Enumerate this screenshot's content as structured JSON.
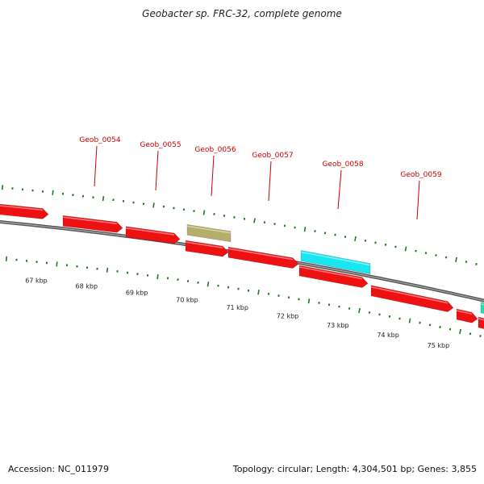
{
  "title": "Geobacter sp. FRC-32, complete genome",
  "footer": {
    "accession": "Accession: NC_011979",
    "stats": "Topology: circular; Length: 4,304,501 bp; Genes: 3,855"
  },
  "colors": {
    "gene_default": "#ee1111",
    "gene_khaki": "#b5ad6a",
    "gene_cyan": "#19e6f0",
    "gene_teal": "#1ee0b0",
    "label": "#cc0000",
    "tick": "#1d7a1d",
    "backbone": "#777777"
  },
  "gene_labels": [
    {
      "text": "Geob_0054"
    },
    {
      "text": "Geob_0055"
    },
    {
      "text": "Geob_0056"
    },
    {
      "text": "Geob_0057"
    },
    {
      "text": "Geob_0058"
    },
    {
      "text": "Geob_0059"
    }
  ],
  "kbp_labels": [
    "67 kbp",
    "68 kbp",
    "69 kbp",
    "70 kbp",
    "71 kbp",
    "72 kbp",
    "73 kbp",
    "74 kbp",
    "75 kbp"
  ]
}
